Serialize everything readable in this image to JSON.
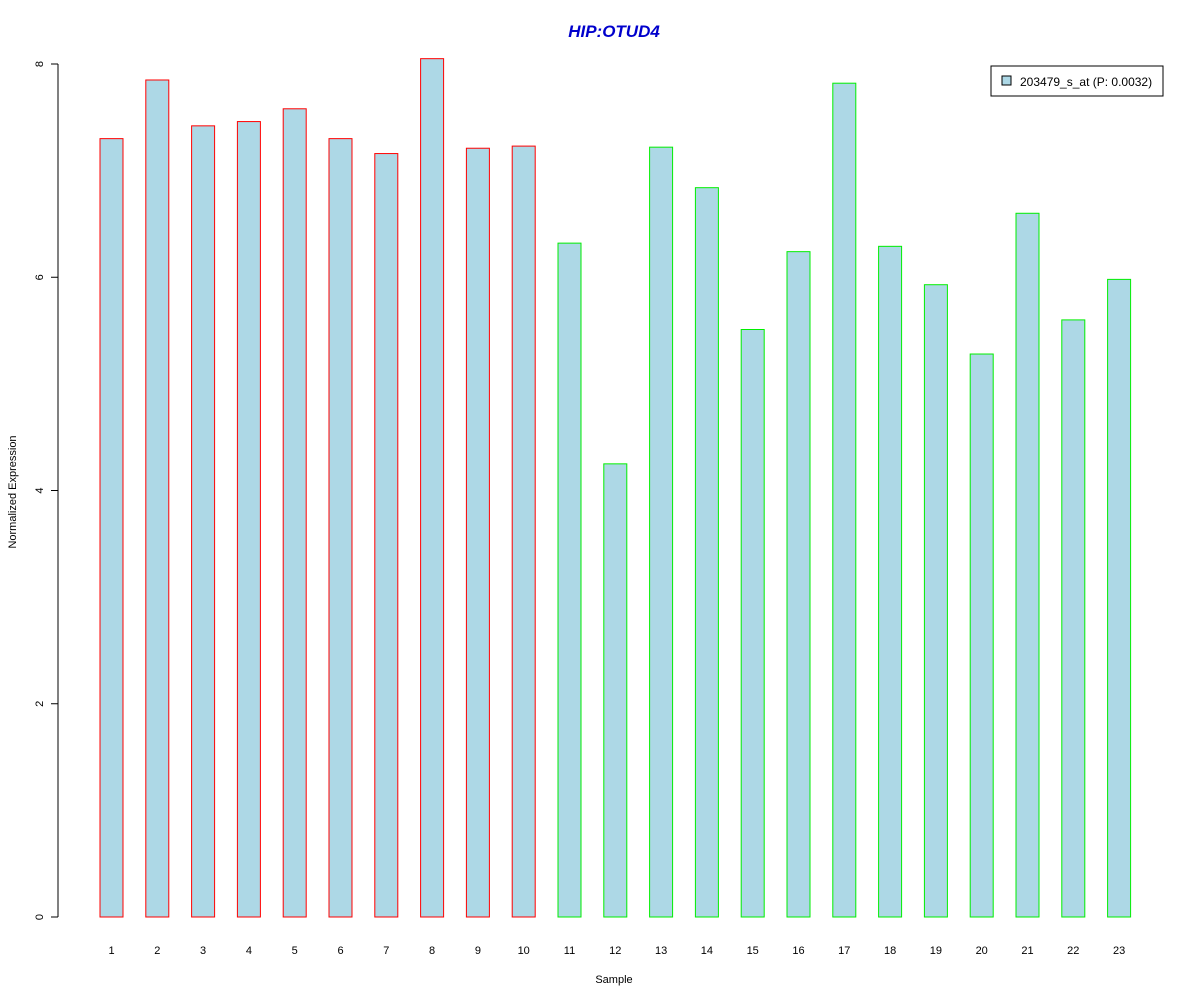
{
  "chart_data": {
    "type": "bar",
    "title": "HIP:OTUD4",
    "title_color": "#0000cc",
    "xlabel": "Sample",
    "ylabel": "Normalized Expression",
    "ylim": [
      0,
      8
    ],
    "yticks": [
      0,
      2,
      4,
      6,
      8
    ],
    "grid": false,
    "legend_position": "top-right",
    "fill_color": "#add8e6",
    "categories": [
      "1",
      "2",
      "3",
      "4",
      "5",
      "6",
      "7",
      "8",
      "9",
      "10",
      "11",
      "12",
      "13",
      "14",
      "15",
      "16",
      "17",
      "18",
      "19",
      "20",
      "21",
      "22",
      "23"
    ],
    "series": [
      {
        "name": "203479_s_at (P: 0.0032)",
        "values": [
          7.3,
          7.85,
          7.42,
          7.46,
          7.58,
          7.3,
          7.16,
          8.05,
          7.21,
          7.23,
          6.32,
          4.25,
          7.22,
          6.84,
          5.51,
          6.24,
          7.82,
          6.29,
          5.93,
          5.28,
          6.6,
          5.6,
          5.98
        ],
        "border_colors": [
          "#ff0000",
          "#ff0000",
          "#ff0000",
          "#ff0000",
          "#ff0000",
          "#ff0000",
          "#ff0000",
          "#ff0000",
          "#ff0000",
          "#ff0000",
          "#00ee00",
          "#00ee00",
          "#00ee00",
          "#00ee00",
          "#00ee00",
          "#00ee00",
          "#00ee00",
          "#00ee00",
          "#00ee00",
          "#00ee00",
          "#00ee00",
          "#00ee00",
          "#00ee00"
        ]
      }
    ]
  }
}
